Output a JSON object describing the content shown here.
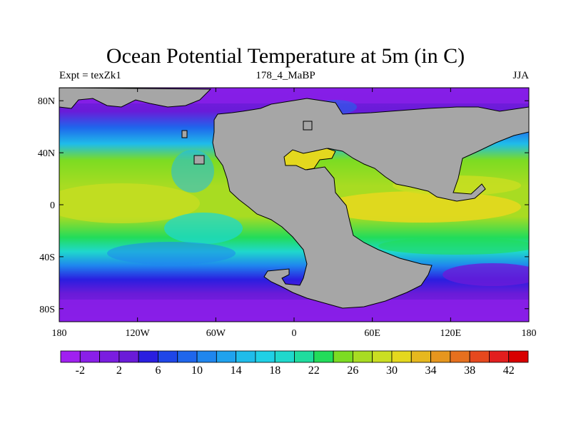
{
  "title": "Ocean Potential Temperature at 5m (in C)",
  "left_string": "Expt = texZk1",
  "center_string": "178_4_MaBP",
  "right_string": "JJA",
  "lat_labels": [
    "80N",
    "40N",
    "0",
    "40S",
    "80S"
  ],
  "lon_labels": [
    "180",
    "120W",
    "60W",
    "0",
    "60E",
    "120E",
    "180"
  ],
  "colorbar": {
    "labels": [
      "-2",
      "2",
      "6",
      "10",
      "14",
      "18",
      "22",
      "26",
      "30",
      "34",
      "38",
      "42"
    ],
    "colors": [
      "#a020f0",
      "#8a1fe8",
      "#7a1de0",
      "#6a1bd8",
      "#2a1ee0",
      "#1f46e8",
      "#1f66ec",
      "#1f86ee",
      "#1fa2ee",
      "#1fbcea",
      "#1fd0e6",
      "#1fd8cc",
      "#1fdc9e",
      "#22dc5a",
      "#7cdc22",
      "#a8dc22",
      "#cade22",
      "#e4d81e",
      "#e6b81e",
      "#e6961e",
      "#e6701e",
      "#e6481e",
      "#e21e1e",
      "#d80000"
    ]
  },
  "chart_data": {
    "type": "heatmap",
    "variable": "Ocean Potential Temperature at 5m",
    "units": "C",
    "season": "JJA",
    "experiment": "texZk1",
    "age": "178_4_MaBP",
    "x_range": [
      -180,
      180
    ],
    "y_range": [
      -90,
      90
    ],
    "x_ticks": [
      -180,
      -120,
      -60,
      0,
      60,
      120,
      180
    ],
    "y_ticks": [
      80,
      40,
      0,
      -40,
      -80
    ],
    "color_levels": [
      -4,
      -2,
      0,
      2,
      4,
      6,
      8,
      10,
      12,
      14,
      16,
      18,
      20,
      22,
      24,
      26,
      28,
      30,
      32,
      34,
      36,
      38,
      40,
      42,
      44
    ],
    "land_color": "#a6a6a6"
  }
}
